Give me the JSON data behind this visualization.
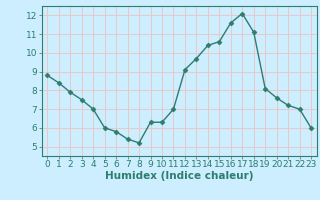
{
  "x": [
    0,
    1,
    2,
    3,
    4,
    5,
    6,
    7,
    8,
    9,
    10,
    11,
    12,
    13,
    14,
    15,
    16,
    17,
    18,
    19,
    20,
    21,
    22,
    23
  ],
  "y": [
    8.8,
    8.4,
    7.9,
    7.5,
    7.0,
    6.0,
    5.8,
    5.4,
    5.2,
    6.3,
    6.3,
    7.0,
    9.1,
    9.7,
    10.4,
    10.6,
    11.6,
    12.1,
    11.1,
    8.1,
    7.6,
    7.2,
    7.0,
    6.0
  ],
  "xlabel": "Humidex (Indice chaleur)",
  "ylim": [
    4.5,
    12.5
  ],
  "xlim": [
    -0.5,
    23.5
  ],
  "yticks": [
    5,
    6,
    7,
    8,
    9,
    10,
    11,
    12
  ],
  "xticks": [
    0,
    1,
    2,
    3,
    4,
    5,
    6,
    7,
    8,
    9,
    10,
    11,
    12,
    13,
    14,
    15,
    16,
    17,
    18,
    19,
    20,
    21,
    22,
    23
  ],
  "line_color": "#2e7d6e",
  "marker": "D",
  "marker_size": 2.5,
  "background_color": "#cceeff",
  "grid_color": "#e8c8c8",
  "axis_color": "#2e7d6e",
  "tick_color": "#2e7d6e",
  "label_color": "#2e7d6e",
  "font_size_ticks": 6.5,
  "font_size_xlabel": 7.5
}
